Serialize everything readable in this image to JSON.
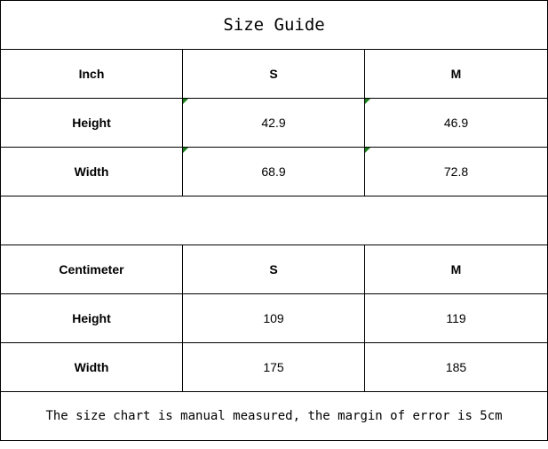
{
  "title": "Size Guide",
  "inch_table": {
    "headers": [
      "Inch",
      "S",
      "M"
    ],
    "rows": [
      {
        "label": "Height",
        "S": "42.9",
        "M": "46.9"
      },
      {
        "label": "Width",
        "S": "68.9",
        "M": "72.8"
      }
    ]
  },
  "cm_table": {
    "headers": [
      "Centimeter",
      "S",
      "M"
    ],
    "rows": [
      {
        "label": "Height",
        "S": "109",
        "M": "119"
      },
      {
        "label": "Width",
        "S": "175",
        "M": "185"
      }
    ]
  },
  "note": "The size chart is manual measured, the margin of error is 5cm",
  "colors": {
    "text_marker": "#1a7f1a",
    "border": "#000000"
  }
}
